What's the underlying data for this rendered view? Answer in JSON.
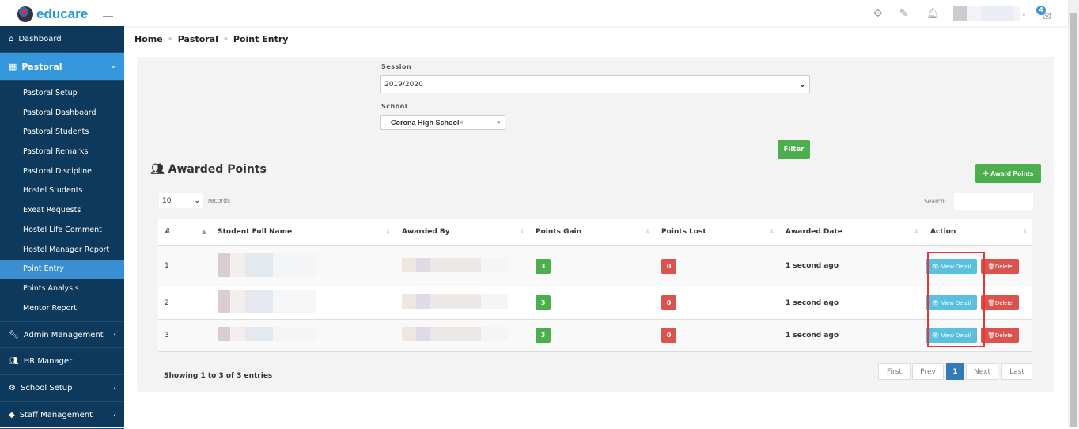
{
  "app": {
    "logo_text": "educare",
    "notification_count": "4"
  },
  "breadcrumb": [
    "Home",
    "Pastoral",
    "Point Entry"
  ],
  "sidebar": {
    "dashboard": "Dashboard",
    "pastoral": "Pastoral",
    "sub": [
      "Pastoral Setup",
      "Pastoral Dashboard",
      "Pastoral Students",
      "Pastoral Remarks",
      "Pastoral Discipline",
      "Hostel Students",
      "Exeat Requests",
      "Hostel Life Comment",
      "Hostel Manager Report",
      "Point Entry",
      "Points Analysis",
      "Mentor Report"
    ],
    "active_sub": "Point Entry",
    "bottom": [
      "Admin Management",
      "HR Manager",
      "School Setup",
      "Staff Management"
    ]
  },
  "filter": {
    "session_label": "Session",
    "session_value": "2019/2020",
    "school_label": "School",
    "school_value": "Corona High School",
    "clear": "×",
    "filter_button": "Filter"
  },
  "section": {
    "title": "Awarded Points",
    "award_button": "Award Points"
  },
  "table": {
    "length_value": "10",
    "length_label": "records",
    "search_label": "Search:",
    "headers": [
      "#",
      "Student Full Name",
      "Awarded By",
      "Points Gain",
      "Points Lost",
      "Awarded Date",
      "Action"
    ],
    "rows": [
      {
        "n": "1",
        "gain": "3",
        "lost": "0",
        "date": "1 second ago"
      },
      {
        "n": "2",
        "gain": "3",
        "lost": "0",
        "date": "1 second ago"
      },
      {
        "n": "3",
        "gain": "3",
        "lost": "0",
        "date": "1 second ago"
      }
    ],
    "view_label": "View Detail",
    "delete_label": "Delete",
    "info": "Showing 1 to 3 of 3 entries"
  },
  "pagination": {
    "first": "First",
    "prev": "Prev",
    "current": "1",
    "next": "Next",
    "last": "Last"
  },
  "colors": {
    "sidebar": "#0d3a5c",
    "active": "#3598dc",
    "success": "#4cae4c",
    "danger": "#d9534f",
    "info": "#5bc0de",
    "highlight": "#e53935"
  }
}
